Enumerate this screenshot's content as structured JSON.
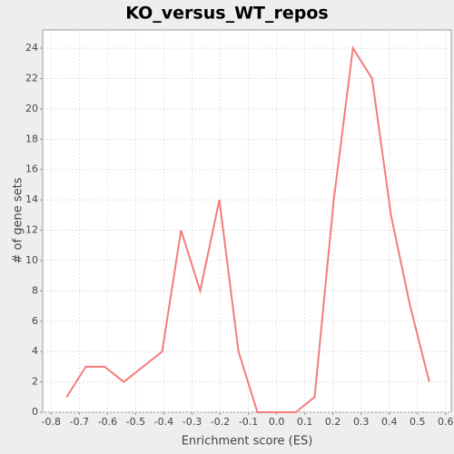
{
  "chart_data": {
    "type": "line",
    "title": "KO_versus_WT_repos",
    "x_label": "Enrichment score (ES)",
    "y_label": "# of gene sets",
    "series": [
      {
        "color": "#f47c7c",
        "x": [
          -0.745,
          -0.677,
          -0.61,
          -0.542,
          -0.474,
          -0.406,
          -0.339,
          -0.271,
          -0.203,
          -0.135,
          -0.068,
          0,
          0.068,
          0.135,
          0.203,
          0.271,
          0.339,
          0.406,
          0.474,
          0.542
        ],
        "values": [
          1,
          3,
          3,
          2,
          3,
          4,
          12,
          8,
          14,
          4,
          0,
          0,
          0,
          1,
          14,
          24,
          22,
          13,
          7,
          2
        ]
      }
    ],
    "xlim": [
      -0.83,
      0.62
    ],
    "xticks": [
      -0.8,
      -0.7,
      -0.6,
      -0.5,
      -0.4,
      -0.3,
      -0.2,
      -0.1,
      {
        "value": 0,
        "label": "0.0"
      },
      0.1,
      0.2,
      0.3,
      0.4,
      0.5,
      0.6
    ],
    "ylim": [
      0,
      25.2
    ],
    "yticks": [
      0,
      2,
      4,
      6,
      8,
      10,
      12,
      14,
      16,
      18,
      20,
      22,
      24
    ],
    "grid": true
  }
}
